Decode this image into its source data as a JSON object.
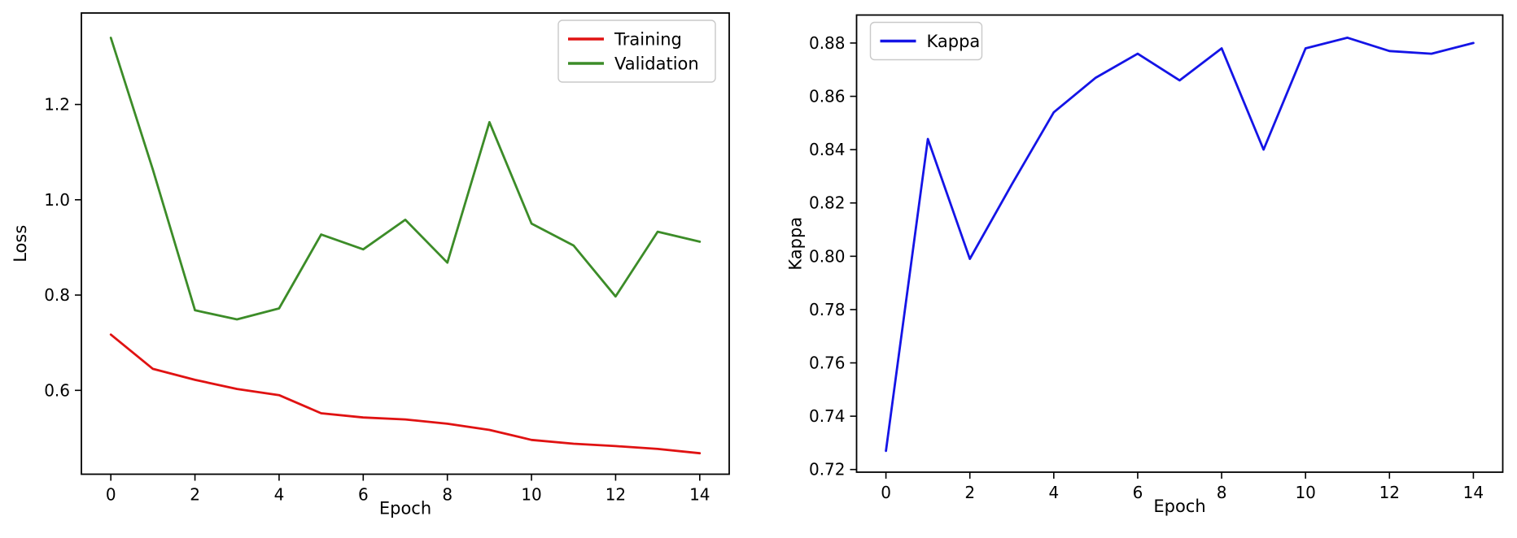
{
  "page": {
    "background": "#ffffff",
    "text_color": "#000000",
    "spine_color": "#000000"
  },
  "chart_data": [
    {
      "type": "line",
      "title": "",
      "xlabel": "Epoch",
      "ylabel": "Loss",
      "x": [
        0,
        1,
        2,
        3,
        4,
        5,
        6,
        7,
        8,
        9,
        10,
        11,
        12,
        13,
        14
      ],
      "series": [
        {
          "name": "Training",
          "color": "#e01212",
          "values": [
            0.717,
            0.645,
            0.622,
            0.603,
            0.59,
            0.552,
            0.543,
            0.539,
            0.53,
            0.517,
            0.496,
            0.488,
            0.483,
            0.477,
            0.468
          ]
        },
        {
          "name": "Validation",
          "color": "#3c8c28",
          "values": [
            1.34,
            1.063,
            0.768,
            0.749,
            0.772,
            0.927,
            0.896,
            0.958,
            0.868,
            1.163,
            0.95,
            0.904,
            0.797,
            0.933,
            0.912
          ]
        }
      ],
      "xlim": [
        -0.7,
        14.7
      ],
      "ylim": [
        0.424,
        1.392
      ],
      "xticks": [
        0,
        2,
        4,
        6,
        8,
        10,
        12,
        14
      ],
      "xtick_labels": [
        "0",
        "2",
        "4",
        "6",
        "8",
        "10",
        "12",
        "14"
      ],
      "yticks": [
        0.6,
        0.8,
        1.0,
        1.2
      ],
      "ytick_labels": [
        "0.6",
        "0.8",
        "1.0",
        "1.2"
      ],
      "grid": false,
      "legend_position": "upper-right",
      "legend_labels": [
        "Training",
        "Validation"
      ]
    },
    {
      "type": "line",
      "title": "",
      "xlabel": "Epoch",
      "ylabel": "Kappa",
      "x": [
        0,
        1,
        2,
        3,
        4,
        5,
        6,
        7,
        8,
        9,
        10,
        11,
        12,
        13,
        14
      ],
      "series": [
        {
          "name": "Kappa",
          "color": "#1414e6",
          "values": [
            0.727,
            0.844,
            0.799,
            0.827,
            0.854,
            0.867,
            0.876,
            0.866,
            0.878,
            0.84,
            0.878,
            0.882,
            0.877,
            0.876,
            0.88
          ]
        }
      ],
      "xlim": [
        -0.7,
        14.7
      ],
      "ylim": [
        0.719,
        0.8905
      ],
      "xticks": [
        0,
        2,
        4,
        6,
        8,
        10,
        12,
        14
      ],
      "xtick_labels": [
        "0",
        "2",
        "4",
        "6",
        "8",
        "10",
        "12",
        "14"
      ],
      "yticks": [
        0.72,
        0.74,
        0.76,
        0.78,
        0.8,
        0.82,
        0.84,
        0.86,
        0.88
      ],
      "ytick_labels": [
        "0.72",
        "0.74",
        "0.76",
        "0.78",
        "0.80",
        "0.82",
        "0.84",
        "0.86",
        "0.88"
      ],
      "grid": false,
      "legend_position": "upper-left",
      "legend_labels": [
        "Kappa"
      ]
    }
  ]
}
